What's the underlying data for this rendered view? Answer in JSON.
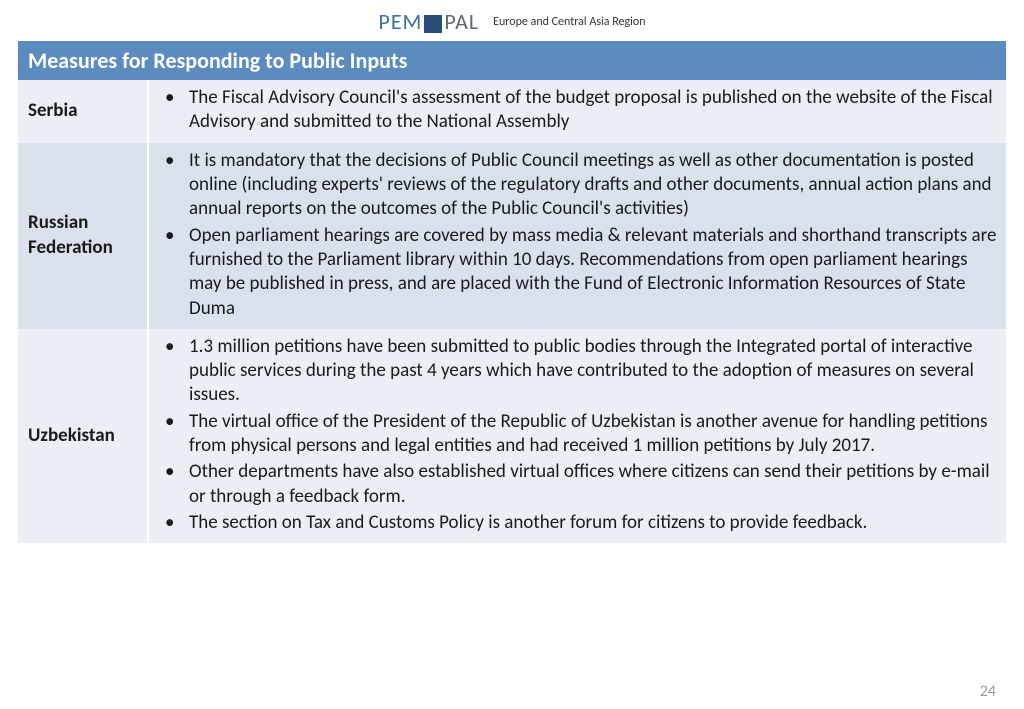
{
  "header": {
    "logo_pem": "PEM",
    "logo_pal": "PAL",
    "region": "Europe and Central Asia Region"
  },
  "title": "Measures for Responding to Public Inputs",
  "colors": {
    "title_bg": "#5b8bbf",
    "title_text": "#ffffff",
    "row_light": "#eaeff5",
    "row_dark": "#d9e2ec",
    "logo_pem": "#3b6fa8",
    "logo_pal": "#5a6b78",
    "logo_square": "#2a4e7a"
  },
  "rows": [
    {
      "country": "Serbia",
      "shade": "light",
      "bullets": [
        "The Fiscal Advisory Council's assessment of the budget proposal is published on the website of the Fiscal Advisory and submitted to the National Assembly"
      ]
    },
    {
      "country": "Russian Federation",
      "shade": "dark",
      "bullets": [
        "It is mandatory that the decisions of Public Council meetings as well as other documentation is posted online (including experts' reviews of the regulatory drafts and other documents, annual action plans and annual reports on the outcomes of the Public Council's activities)",
        "Open parliament hearings are covered by mass media & relevant materials and shorthand transcripts are furnished to the Parliament library within 10 days. Recommendations from open parliament hearings may be published in press, and are placed with the Fund of Electronic Information Resources of State Duma"
      ]
    },
    {
      "country": "Uzbekistan",
      "shade": "light",
      "bullets": [
        "1.3 million petitions have been submitted to public bodies through the Integrated portal of interactive public services during the past 4 years which have contributed to the adoption of measures on several issues.",
        "The virtual office of the President of the Republic of Uzbekistan is another avenue for handling petitions from physical persons and legal entities and had received 1 million petitions by July 2017.",
        "Other departments have also established virtual offices where citizens can send their petitions by e-mail or through a feedback form.",
        "The section on Tax and Customs Policy is another forum for citizens to provide feedback."
      ]
    }
  ],
  "page_number": "24"
}
